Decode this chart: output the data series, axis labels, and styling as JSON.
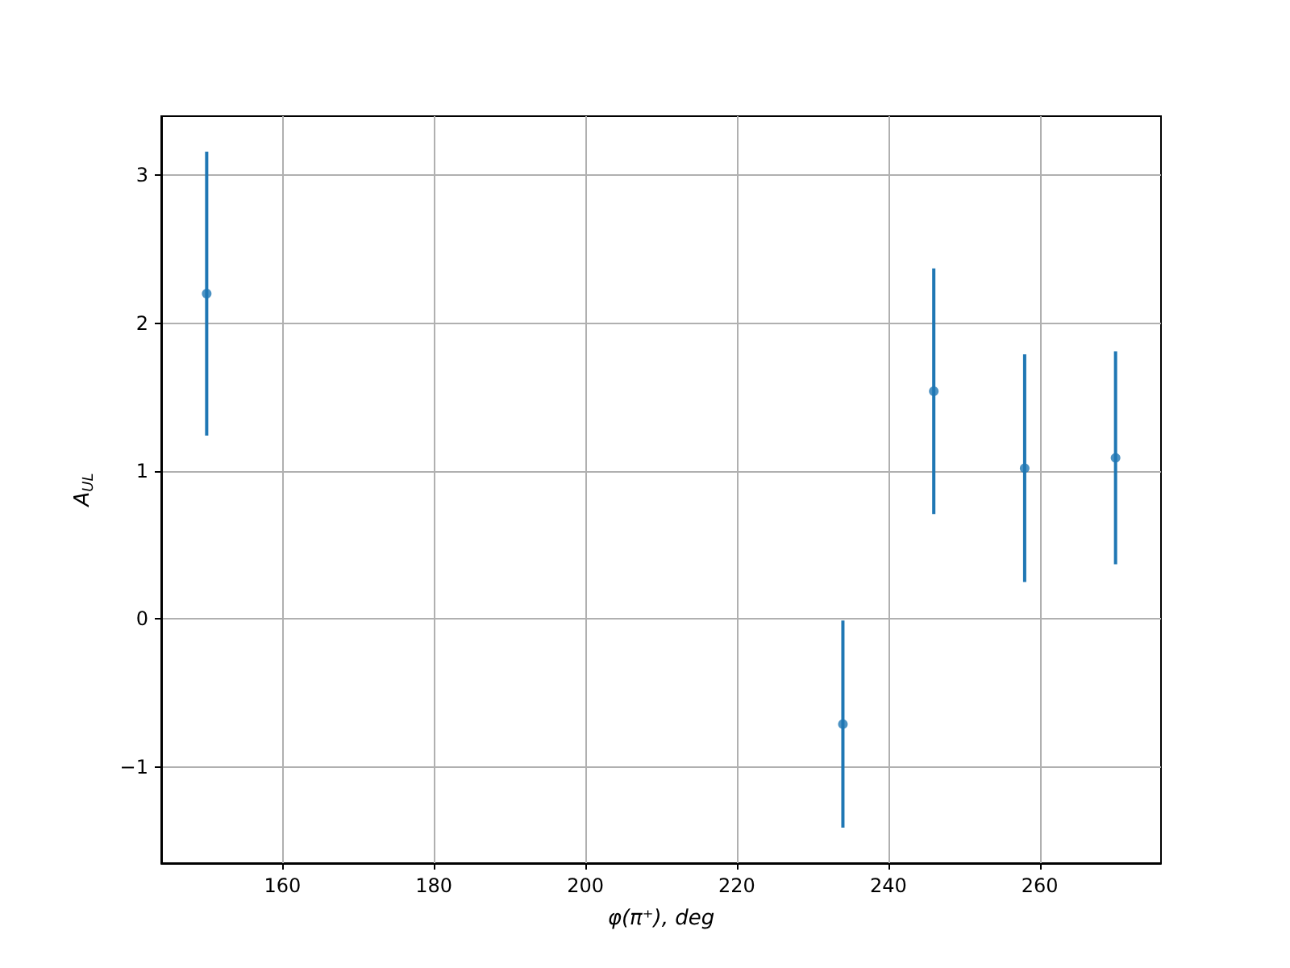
{
  "chart_data": {
    "type": "scatter",
    "xlabel": "φ(π⁺), deg",
    "ylabel": "A$_{UL}$",
    "x": [
      150,
      234,
      246,
      258,
      270
    ],
    "values": [
      2.2,
      -0.71,
      1.54,
      1.02,
      1.09
    ],
    "errors": [
      0.96,
      0.7,
      0.83,
      0.77,
      0.72
    ],
    "color": "#1f77b4",
    "marker": "circle",
    "xlim": [
      144,
      276
    ],
    "xticks": [
      160,
      180,
      200,
      220,
      240,
      260
    ],
    "ylim": [
      -1.65,
      3.4
    ],
    "yticks": [
      {
        "value": -1,
        "label": "−1"
      },
      0,
      1,
      2,
      3
    ],
    "grid": true
  }
}
